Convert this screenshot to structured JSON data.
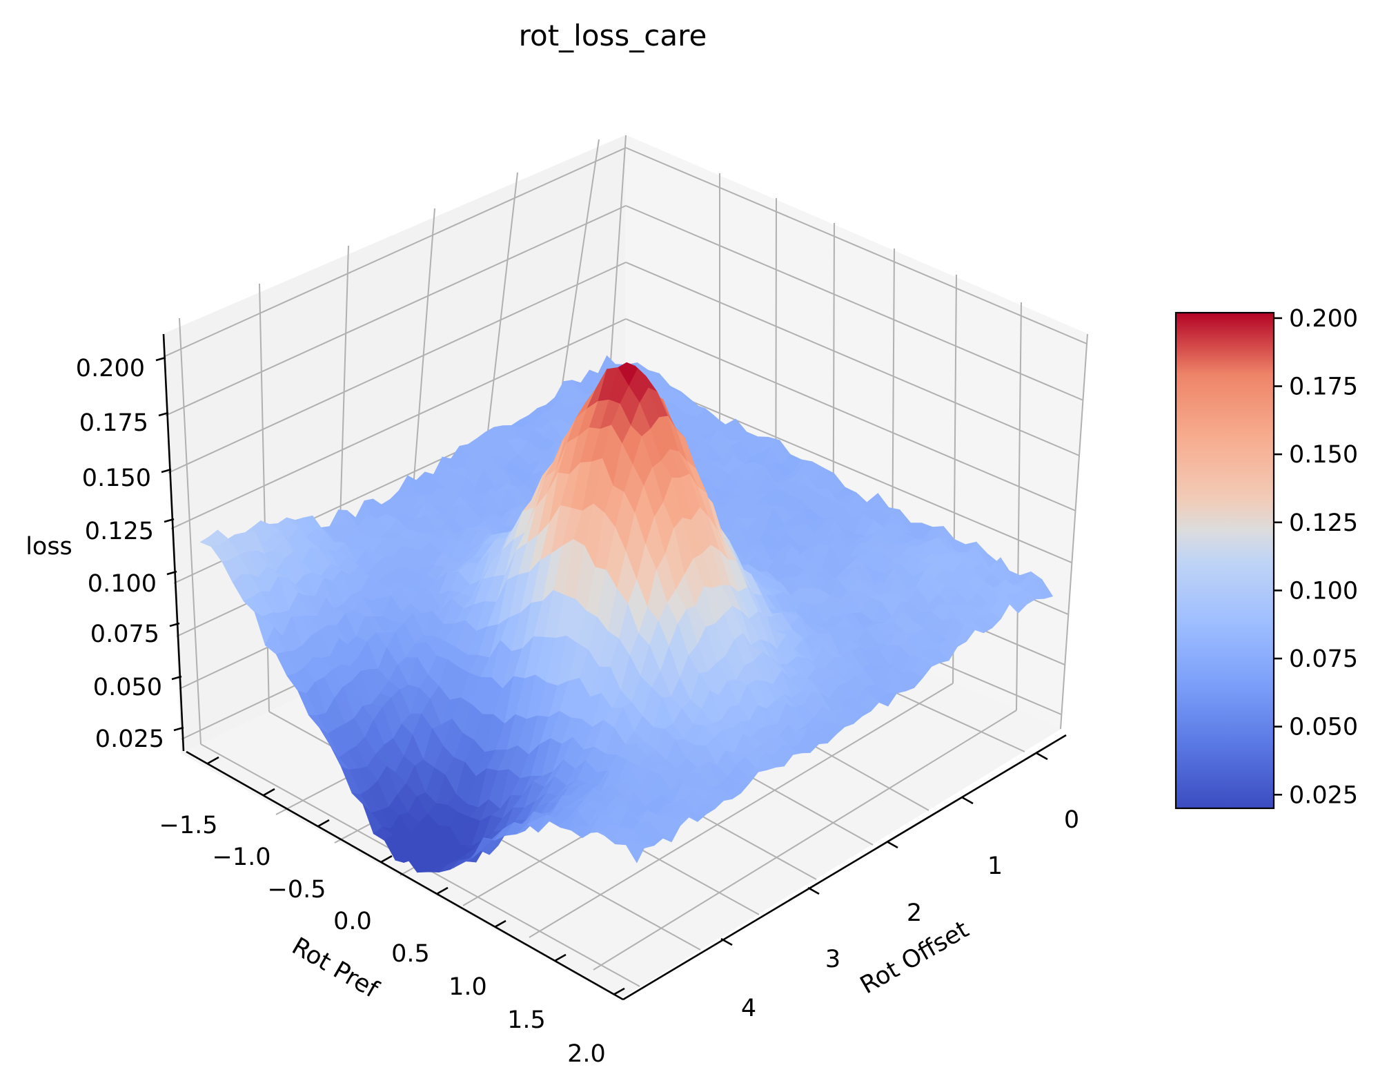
{
  "chart_data": {
    "type": "surface",
    "title": "rot_loss_care",
    "xlabel": "Rot Pref",
    "ylabel": "Rot Offset",
    "zlabel": "loss",
    "colormap": "coolwarm",
    "x_ticks": [
      "−1.5",
      "−1.0",
      "−0.5",
      "0.0",
      "0.5",
      "1.0",
      "1.5",
      "2.0"
    ],
    "y_ticks": [
      "0",
      "1",
      "2",
      "3",
      "4"
    ],
    "z_ticks": [
      "0.025",
      "0.050",
      "0.075",
      "0.100",
      "0.125",
      "0.150",
      "0.175",
      "0.200"
    ],
    "colorbar_ticks": [
      "0.025",
      "0.050",
      "0.075",
      "0.100",
      "0.125",
      "0.150",
      "0.175",
      "0.200"
    ],
    "xlim": [
      -1.6,
      2.0
    ],
    "ylim": [
      -0.3,
      4.6
    ],
    "zlim": [
      0.018,
      0.205
    ],
    "color_range": [
      0.02,
      0.202
    ],
    "surface_samples": {
      "description": "approximate loss values on a grid of Rot Pref (x) by Rot Offset (y)",
      "x": [
        -1.57,
        -1.0,
        -0.5,
        0.0,
        0.5,
        1.0,
        1.5,
        2.0
      ],
      "y": [
        0.0,
        0.6,
        1.2,
        1.8,
        2.4,
        3.0,
        3.6,
        4.2
      ],
      "z": [
        [
          0.075,
          0.076,
          0.076,
          0.077,
          0.077,
          0.076,
          0.076,
          0.075
        ],
        [
          0.076,
          0.077,
          0.078,
          0.079,
          0.08,
          0.078,
          0.077,
          0.076
        ],
        [
          0.078,
          0.08,
          0.083,
          0.09,
          0.098,
          0.094,
          0.085,
          0.079
        ],
        [
          0.082,
          0.088,
          0.1,
          0.125,
          0.15,
          0.14,
          0.105,
          0.085
        ],
        [
          0.087,
          0.1,
          0.13,
          0.175,
          0.2,
          0.185,
          0.13,
          0.09
        ],
        [
          0.09,
          0.095,
          0.1,
          0.11,
          0.12,
          0.105,
          0.08,
          0.07
        ],
        [
          0.095,
          0.08,
          0.06,
          0.045,
          0.04,
          0.05,
          0.07,
          0.085
        ],
        [
          0.1,
          0.07,
          0.035,
          0.022,
          0.025,
          0.045,
          0.08,
          0.1
        ]
      ]
    }
  }
}
